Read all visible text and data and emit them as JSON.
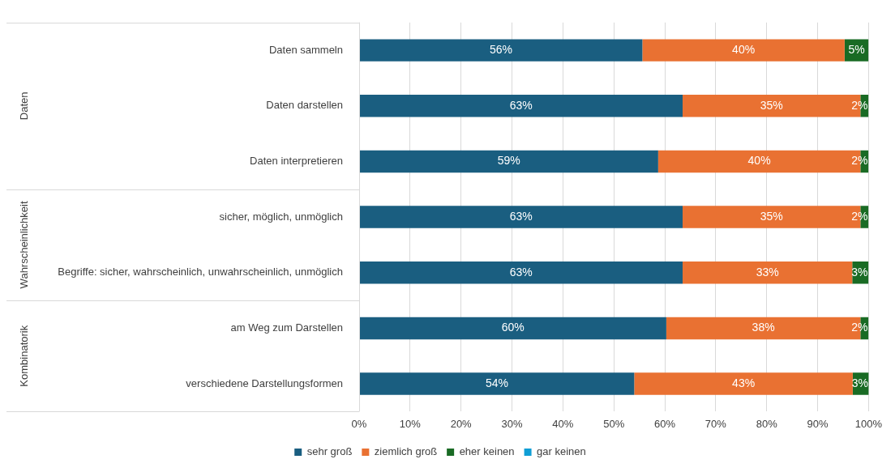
{
  "chart_data": {
    "type": "bar",
    "orientation": "horizontal",
    "stacked": true,
    "categories": [
      "Daten sammeln",
      "Daten darstellen",
      "Daten interpretieren",
      "sicher, möglich, unmöglich",
      "Begriffe: sicher, wahrscheinlich, unwahrscheinlich, unmöglich",
      "am Weg zum Darstellen",
      "verschiedene Darstellungsformen"
    ],
    "series": [
      {
        "name": "sehr groß",
        "color": "#1a5e80",
        "values": [
          55.6,
          63.5,
          58.7,
          63.5,
          63.5,
          60.3,
          54.0
        ],
        "value_labels": [
          "56%",
          "63%",
          "59%",
          "63%",
          "63%",
          "60%",
          "54%"
        ]
      },
      {
        "name": "ziemlich groß",
        "color": "#e97132",
        "values": [
          39.7,
          34.9,
          39.7,
          34.9,
          33.3,
          38.1,
          42.9
        ],
        "value_labels": [
          "40%",
          "35%",
          "40%",
          "35%",
          "33%",
          "38%",
          "43%"
        ]
      },
      {
        "name": "eher keinen",
        "color": "#196b24",
        "values": [
          4.7,
          1.6,
          1.6,
          1.6,
          3.2,
          1.6,
          3.2
        ],
        "value_labels": [
          "5%",
          "2%",
          "2%",
          "2%",
          "3%",
          "2%",
          "3%"
        ]
      },
      {
        "name": "gar keinen",
        "color": "#0f9ed5",
        "values": [
          0,
          0,
          0,
          0,
          0,
          0,
          0
        ],
        "value_labels": [
          null,
          null,
          null,
          null,
          null,
          null,
          null
        ]
      }
    ],
    "xlim": [
      0,
      100
    ],
    "xticks": [
      {
        "value": 0,
        "label": "0%"
      },
      {
        "value": 10,
        "label": "10%"
      },
      {
        "value": 20,
        "label": "20%"
      },
      {
        "value": 30,
        "label": "30%"
      },
      {
        "value": 40,
        "label": "40%"
      },
      {
        "value": 50,
        "label": "50%"
      },
      {
        "value": 60,
        "label": "60%"
      },
      {
        "value": 70,
        "label": "70%"
      },
      {
        "value": 80,
        "label": "80%"
      },
      {
        "value": 90,
        "label": "90%"
      },
      {
        "value": 100,
        "label": "100%"
      }
    ],
    "annotations": [
      "Daten",
      "Wahrscheinlichkeit",
      "Kombinatorik"
    ],
    "grid": "x",
    "legend": "bottom"
  }
}
